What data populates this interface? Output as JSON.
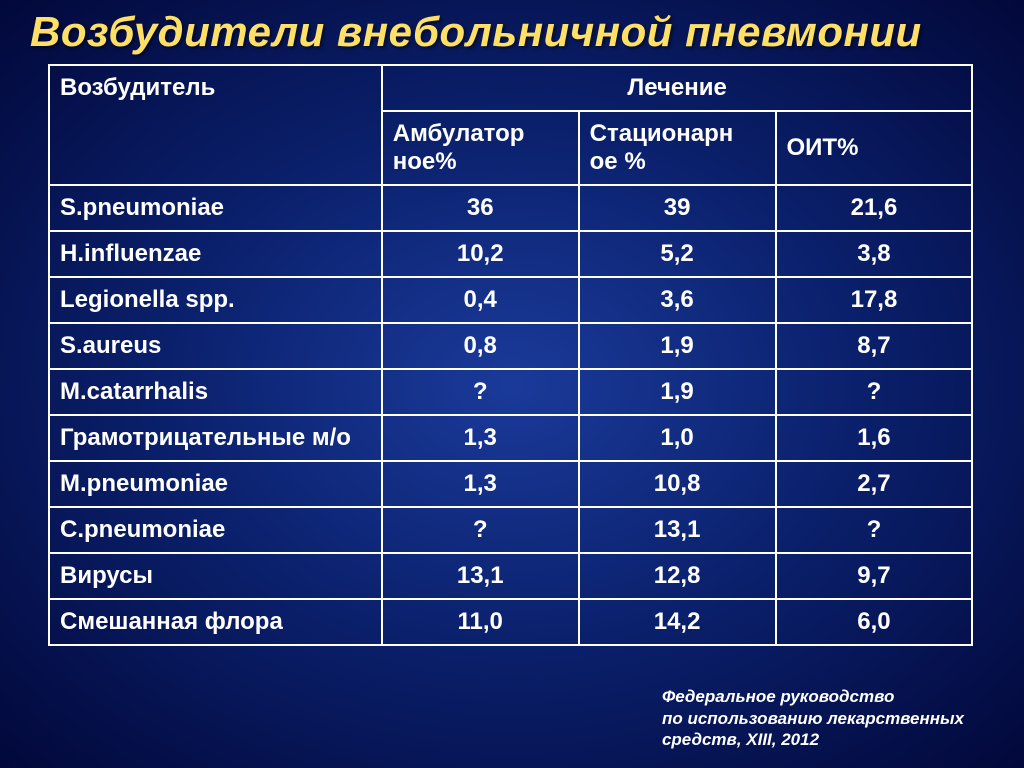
{
  "slide": {
    "title": "Возбудители внебольничной пневмонии",
    "background": {
      "type": "radial-gradient",
      "center_color": "#1a3a9a",
      "mid_color": "#0a1f6a",
      "outer_color": "#02083a"
    },
    "title_style": {
      "color": "#ffe066",
      "font_size_pt": 32,
      "font_weight": "bold",
      "font_style": "italic"
    },
    "table": {
      "type": "table",
      "border_color": "#ffffff",
      "text_color": "#ffffff",
      "font_size_pt": 18,
      "font_weight": "bold",
      "col_widths_pct": [
        36,
        21.3,
        21.3,
        21.3
      ],
      "header": {
        "row1_col1": "Возбудитель",
        "row1_col2_span3": "Лечение",
        "row2_col2": "Амбулатор\nное%",
        "row2_col3": "Стационарн\nое %",
        "row2_col4": "ОИТ%"
      },
      "rows": [
        {
          "pathogen": "S.pneumoniae",
          "amb": "36",
          "stat": "39",
          "oit": "21,6"
        },
        {
          "pathogen": "H.influenzae",
          "amb": "10,2",
          "stat": "5,2",
          "oit": "3,8"
        },
        {
          "pathogen": "Legionella spp.",
          "amb": "0,4",
          "stat": "3,6",
          "oit": "17,8"
        },
        {
          "pathogen": "S.aureus",
          "amb": "0,8",
          "stat": "1,9",
          "oit": "8,7"
        },
        {
          "pathogen": "M.catarrhalis",
          "amb": "?",
          "stat": "1,9",
          "oit": "?"
        },
        {
          "pathogen": "Грамотрицательные м/о",
          "amb": "1,3",
          "stat": "1,0",
          "oit": "1,6"
        },
        {
          "pathogen": "M.pneumoniae",
          "amb": "1,3",
          "stat": "10,8",
          "oit": "2,7"
        },
        {
          "pathogen": "C.pneumoniae",
          "amb": "?",
          "stat": "13,1",
          "oit": "?"
        },
        {
          "pathogen": "Вирусы",
          "amb": "13,1",
          "stat": "12,8",
          "oit": "9,7"
        },
        {
          "pathogen": "Смешанная флора",
          "amb": "11,0",
          "stat": "14,2",
          "oit": "6,0"
        }
      ]
    },
    "footer": {
      "line1": "Федеральное руководство",
      "line2": "по использованию лекарственных",
      "line3": "средств, XIII, 2012",
      "color": "#ffffff",
      "font_style": "italic",
      "font_size_pt": 13
    }
  }
}
